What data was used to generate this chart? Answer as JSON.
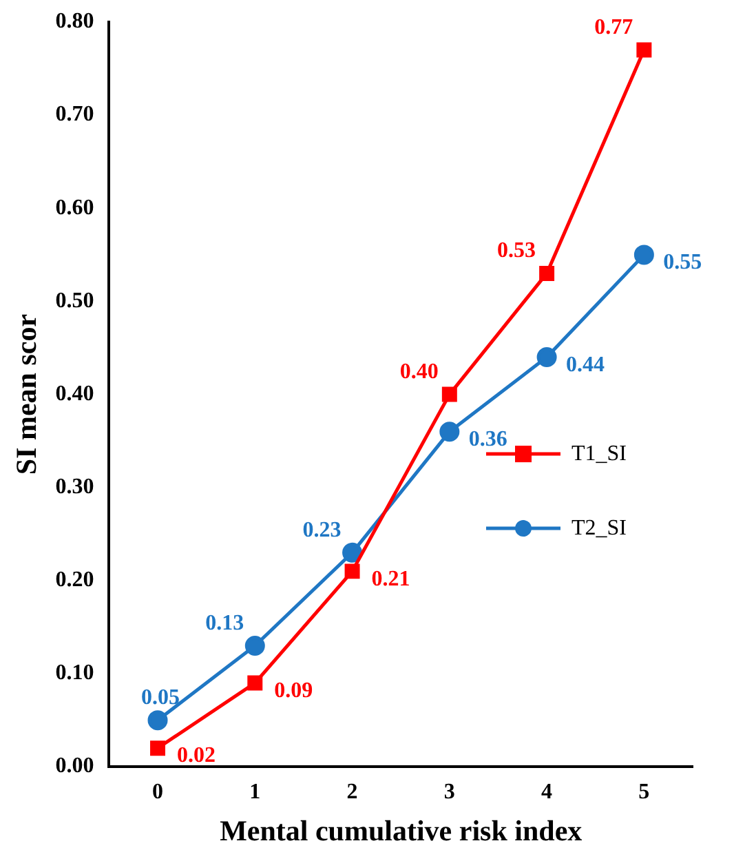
{
  "chart_data": {
    "type": "line",
    "xlabel": "Mental cumulative risk index",
    "ylabel": "SI mean scor",
    "categories": [
      "0",
      "1",
      "2",
      "3",
      "4",
      "5"
    ],
    "series": [
      {
        "name": "T1_SI",
        "color": "#ff0000",
        "marker": "square",
        "values": [
          0.02,
          0.09,
          0.21,
          0.4,
          0.53,
          0.77
        ],
        "value_labels": [
          "0.02",
          "0.09",
          "0.21",
          "0.40",
          "0.53",
          "0.77"
        ]
      },
      {
        "name": "T2_SI",
        "color": "#1f77c4",
        "marker": "circle",
        "values": [
          0.05,
          0.13,
          0.23,
          0.36,
          0.44,
          0.55
        ],
        "value_labels": [
          "0.05",
          "0.13",
          "0.23",
          "0.36",
          "0.44",
          "0.55"
        ]
      }
    ],
    "ylim": [
      0,
      0.8
    ],
    "yticks": [
      {
        "value": 0,
        "label": "0.00"
      },
      {
        "value": 0.1,
        "label": "0.10"
      },
      {
        "value": 0.2,
        "label": "0.20"
      },
      {
        "value": 0.3,
        "label": "0.30"
      },
      {
        "value": 0.4,
        "label": "0.40"
      },
      {
        "value": 0.5,
        "label": "0.50"
      },
      {
        "value": 0.6,
        "label": "0.60"
      },
      {
        "value": 0.7,
        "label": "0.70"
      },
      {
        "value": 0.8,
        "label": "0.80"
      }
    ],
    "grid": false,
    "legend": "right",
    "line_style": "solid"
  }
}
